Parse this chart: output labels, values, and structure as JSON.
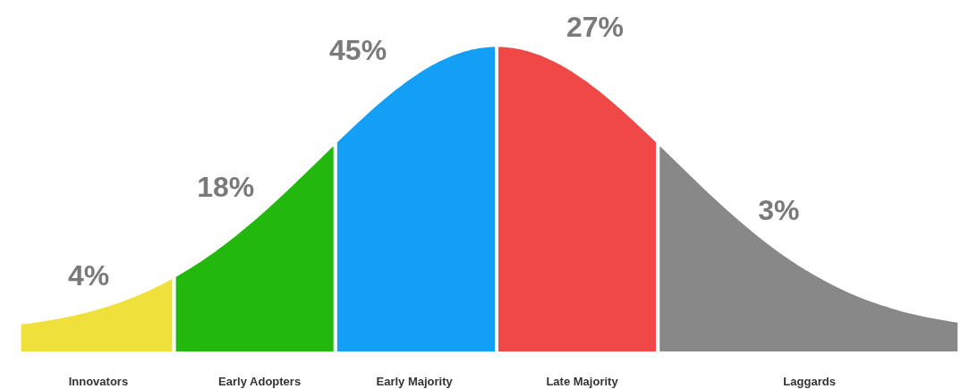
{
  "chart_data": {
    "type": "other",
    "categories": [
      "Innovators",
      "Early Adopters",
      "Early Majority",
      "Late Majority",
      "Laggards"
    ],
    "values": [
      4,
      18,
      45,
      27,
      3
    ],
    "value_labels": [
      "4%",
      "18%",
      "45%",
      "27%",
      "3%"
    ],
    "colors": [
      "#f0e03c",
      "#22b80e",
      "#139ff5",
      "#f04747",
      "#888888"
    ]
  }
}
